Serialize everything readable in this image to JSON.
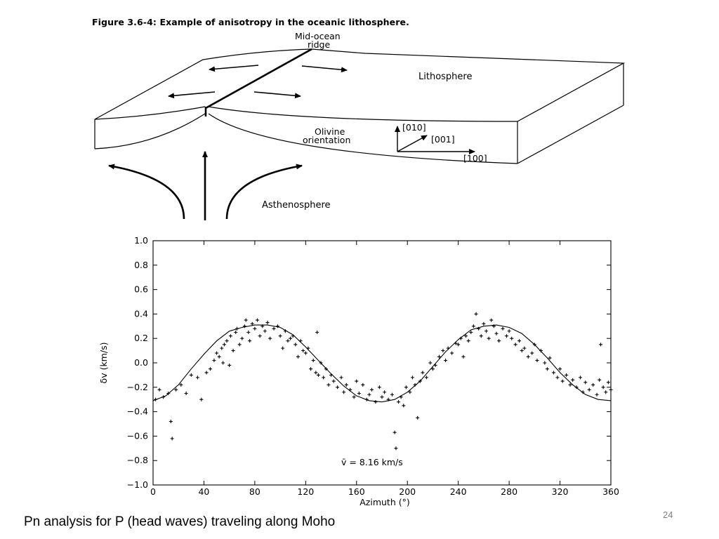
{
  "slide": {
    "figure_title": "Figure 3.6-4: Example of anisotropy in the oceanic lithosphere.",
    "caption": "Pn analysis for P (head waves) traveling along Moho",
    "slide_number": "24"
  },
  "diagram": {
    "ridge_label_line1": "Mid-ocean",
    "ridge_label_line2": "ridge",
    "lithosphere_label": "Lithosphere",
    "olivine_label_line1": "Olivine",
    "olivine_label_line2": "orientation",
    "axis_010": "[010]",
    "axis_001": "[001]",
    "axis_100": "[100]",
    "asthenosphere_label": "Asthenosphere"
  },
  "chart_data": {
    "type": "scatter",
    "xlabel": "Azimuth (°)",
    "ylabel": "δv (km/s)",
    "annotation": "v̄ = 8.16 km/s",
    "xlim": [
      0,
      360
    ],
    "ylim": [
      -1.0,
      1.0
    ],
    "xticks": [
      "0",
      "40",
      "80",
      "120",
      "160",
      "200",
      "240",
      "280",
      "320",
      "360"
    ],
    "yticks": [
      "1.0",
      "0.8",
      "0.6",
      "0.4",
      "0.2",
      "0.0",
      "−0.2",
      "−0.4",
      "−0.6",
      "−0.8",
      "−1.0"
    ],
    "grid": false,
    "fit_curve": {
      "description": "two-cycle sinusoid",
      "points": [
        [
          0,
          -0.31
        ],
        [
          10,
          -0.27
        ],
        [
          20,
          -0.18
        ],
        [
          30,
          -0.05
        ],
        [
          40,
          0.07
        ],
        [
          50,
          0.18
        ],
        [
          60,
          0.26
        ],
        [
          70,
          0.29
        ],
        [
          80,
          0.31
        ],
        [
          90,
          0.31
        ],
        [
          100,
          0.29
        ],
        [
          110,
          0.23
        ],
        [
          120,
          0.13
        ],
        [
          130,
          0.02
        ],
        [
          140,
          -0.09
        ],
        [
          150,
          -0.19
        ],
        [
          160,
          -0.27
        ],
        [
          170,
          -0.31
        ],
        [
          180,
          -0.32
        ],
        [
          190,
          -0.3
        ],
        [
          200,
          -0.24
        ],
        [
          210,
          -0.15
        ],
        [
          220,
          -0.03
        ],
        [
          230,
          0.09
        ],
        [
          240,
          0.19
        ],
        [
          250,
          0.27
        ],
        [
          260,
          0.3
        ],
        [
          270,
          0.31
        ],
        [
          280,
          0.29
        ],
        [
          290,
          0.24
        ],
        [
          300,
          0.15
        ],
        [
          310,
          0.04
        ],
        [
          320,
          -0.08
        ],
        [
          330,
          -0.18
        ],
        [
          340,
          -0.26
        ],
        [
          350,
          -0.3
        ],
        [
          360,
          -0.31
        ]
      ]
    },
    "series": [
      {
        "points": [
          [
            2,
            -0.3
          ],
          [
            5,
            -0.22
          ],
          [
            8,
            -0.28
          ],
          [
            12,
            -0.25
          ],
          [
            14,
            -0.48
          ],
          [
            15,
            -0.62
          ],
          [
            18,
            -0.22
          ],
          [
            22,
            -0.18
          ],
          [
            26,
            -0.25
          ],
          [
            30,
            -0.1
          ],
          [
            35,
            -0.12
          ],
          [
            38,
            -0.3
          ],
          [
            42,
            -0.08
          ],
          [
            45,
            -0.05
          ],
          [
            48,
            0.02
          ],
          [
            50,
            0.08
          ],
          [
            52,
            0.05
          ],
          [
            54,
            0.12
          ],
          [
            55,
            0.0
          ],
          [
            56,
            0.15
          ],
          [
            58,
            0.18
          ],
          [
            60,
            -0.02
          ],
          [
            61,
            0.22
          ],
          [
            63,
            0.1
          ],
          [
            65,
            0.25
          ],
          [
            66,
            0.28
          ],
          [
            68,
            0.15
          ],
          [
            70,
            0.2
          ],
          [
            72,
            0.3
          ],
          [
            73,
            0.35
          ],
          [
            75,
            0.25
          ],
          [
            76,
            0.18
          ],
          [
            78,
            0.32
          ],
          [
            80,
            0.28
          ],
          [
            82,
            0.35
          ],
          [
            84,
            0.22
          ],
          [
            86,
            0.3
          ],
          [
            88,
            0.26
          ],
          [
            90,
            0.33
          ],
          [
            92,
            0.2
          ],
          [
            95,
            0.28
          ],
          [
            98,
            0.3
          ],
          [
            100,
            0.22
          ],
          [
            102,
            0.12
          ],
          [
            104,
            0.26
          ],
          [
            106,
            0.18
          ],
          [
            108,
            0.2
          ],
          [
            110,
            0.22
          ],
          [
            112,
            0.15
          ],
          [
            114,
            0.05
          ],
          [
            116,
            0.18
          ],
          [
            118,
            0.1
          ],
          [
            120,
            0.08
          ],
          [
            122,
            0.12
          ],
          [
            124,
            -0.05
          ],
          [
            126,
            0.02
          ],
          [
            128,
            -0.08
          ],
          [
            129,
            0.25
          ],
          [
            130,
            -0.1
          ],
          [
            132,
            0.0
          ],
          [
            134,
            -0.12
          ],
          [
            136,
            -0.05
          ],
          [
            138,
            -0.18
          ],
          [
            140,
            -0.1
          ],
          [
            142,
            -0.15
          ],
          [
            145,
            -0.2
          ],
          [
            148,
            -0.12
          ],
          [
            150,
            -0.24
          ],
          [
            152,
            -0.18
          ],
          [
            155,
            -0.22
          ],
          [
            158,
            -0.28
          ],
          [
            160,
            -0.15
          ],
          [
            162,
            -0.25
          ],
          [
            165,
            -0.18
          ],
          [
            168,
            -0.3
          ],
          [
            170,
            -0.26
          ],
          [
            172,
            -0.22
          ],
          [
            175,
            -0.32
          ],
          [
            178,
            -0.2
          ],
          [
            180,
            -0.28
          ],
          [
            182,
            -0.24
          ],
          [
            185,
            -0.3
          ],
          [
            188,
            -0.26
          ],
          [
            190,
            -0.57
          ],
          [
            191,
            -0.7
          ],
          [
            193,
            -0.32
          ],
          [
            195,
            -0.28
          ],
          [
            197,
            -0.35
          ],
          [
            199,
            -0.2
          ],
          [
            202,
            -0.24
          ],
          [
            204,
            -0.12
          ],
          [
            206,
            -0.18
          ],
          [
            208,
            -0.45
          ],
          [
            210,
            -0.15
          ],
          [
            212,
            -0.08
          ],
          [
            215,
            -0.12
          ],
          [
            218,
            0.0
          ],
          [
            220,
            -0.05
          ],
          [
            222,
            -0.02
          ],
          [
            225,
            0.05
          ],
          [
            228,
            0.1
          ],
          [
            230,
            0.02
          ],
          [
            232,
            0.12
          ],
          [
            235,
            0.08
          ],
          [
            238,
            0.16
          ],
          [
            240,
            0.15
          ],
          [
            242,
            0.2
          ],
          [
            244,
            0.05
          ],
          [
            246,
            0.22
          ],
          [
            248,
            0.18
          ],
          [
            250,
            0.25
          ],
          [
            252,
            0.3
          ],
          [
            254,
            0.4
          ],
          [
            256,
            0.28
          ],
          [
            258,
            0.22
          ],
          [
            260,
            0.32
          ],
          [
            262,
            0.26
          ],
          [
            264,
            0.2
          ],
          [
            266,
            0.35
          ],
          [
            268,
            0.3
          ],
          [
            270,
            0.24
          ],
          [
            272,
            0.18
          ],
          [
            275,
            0.28
          ],
          [
            278,
            0.22
          ],
          [
            280,
            0.26
          ],
          [
            282,
            0.2
          ],
          [
            285,
            0.15
          ],
          [
            288,
            0.18
          ],
          [
            290,
            0.1
          ],
          [
            292,
            0.12
          ],
          [
            295,
            0.05
          ],
          [
            298,
            0.08
          ],
          [
            300,
            0.15
          ],
          [
            302,
            0.02
          ],
          [
            305,
            0.1
          ],
          [
            308,
            0.0
          ],
          [
            310,
            -0.05
          ],
          [
            312,
            0.04
          ],
          [
            315,
            -0.08
          ],
          [
            318,
            -0.12
          ],
          [
            320,
            -0.05
          ],
          [
            322,
            -0.15
          ],
          [
            325,
            -0.1
          ],
          [
            328,
            -0.18
          ],
          [
            330,
            -0.14
          ],
          [
            333,
            -0.2
          ],
          [
            336,
            -0.12
          ],
          [
            338,
            -0.24
          ],
          [
            340,
            -0.16
          ],
          [
            343,
            -0.22
          ],
          [
            346,
            -0.18
          ],
          [
            349,
            -0.26
          ],
          [
            351,
            -0.14
          ],
          [
            352,
            0.15
          ],
          [
            354,
            -0.2
          ],
          [
            356,
            -0.24
          ],
          [
            358,
            -0.16
          ],
          [
            360,
            -0.22
          ]
        ]
      }
    ]
  }
}
